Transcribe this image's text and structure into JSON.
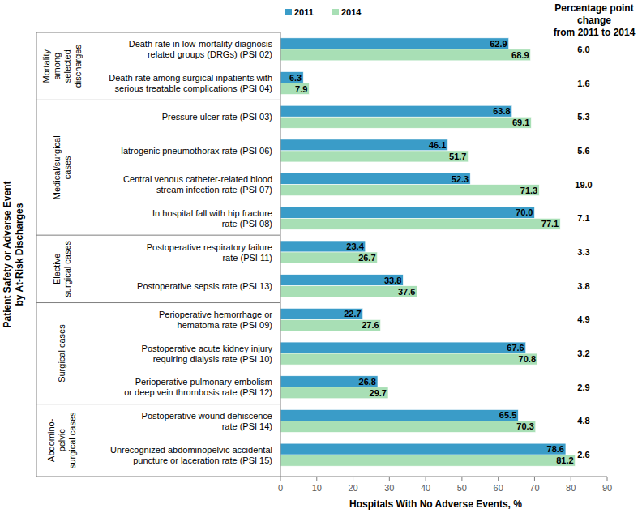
{
  "chart_data": {
    "type": "bar",
    "orientation": "horizontal",
    "data_labels": true,
    "grid": false,
    "legend": "top",
    "x_label": "Hospitals With No Adverse Events, %",
    "y_label": "Patient Safety or Adverse Event\nby At-Risk Discharges",
    "xlim": [
      0,
      90
    ],
    "xticks": [
      0,
      10,
      20,
      30,
      40,
      50,
      60,
      70,
      80,
      90
    ],
    "categories": [
      "Death rate in low-mortality diagnosis\nrelated groups (DRGs) (PSI 02)",
      "Death rate among surgical inpatients with\nserious treatable complications (PSI 04)",
      "Pressure ulcer rate (PSI 03)",
      "Iatrogenic pneumothorax rate (PSI 06)",
      "Central venous catheter-related blood\nstream infection rate (PSI 07)",
      "In hospital fall with hip fracture\nrate (PSI 08)",
      "Postoperative respiratory failure\nrate (PSI 11)",
      "Postoperative sepsis rate (PSI 13)",
      "Perioperative hemorrhage or\nhematoma rate (PSI 09)",
      "Postoperative acute kidney injury\nrequiring dialysis rate (PSI 10)",
      "Perioperative pulmonary embolism\nor deep vein thrombosis rate (PSI 12)",
      "Postoperative wound dehiscence\nrate (PSI 14)",
      "Unrecognized abdominopelvic accidental\npuncture or laceration rate (PSI 15)"
    ],
    "category_groups": [
      "Mortality\namong\nselected\ndischarges",
      "Mortality\namong\nselected\ndischarges",
      "Medical/surgical\ncases",
      "Medical/surgical\ncases",
      "Medical/surgical\ncases",
      "Medical/surgical\ncases",
      "Elective\nsurgical cases",
      "Elective\nsurgical cases",
      "Surgical cases",
      "Surgical cases",
      "Surgical cases",
      "Abdomino-\npelvic\nsurgical cases",
      "Abdomino-\npelvic\nsurgical cases"
    ],
    "series": [
      {
        "name": "2011",
        "color": "#3a9cc8",
        "values": [
          62.9,
          6.3,
          63.8,
          46.1,
          52.3,
          70.0,
          23.4,
          33.8,
          22.7,
          67.6,
          26.8,
          65.5,
          78.6
        ],
        "value_labels": [
          "62.9",
          "6.3",
          "63.8",
          "46.1",
          "52.3",
          "70.0",
          "23.4",
          "33.8",
          "22.7",
          "67.6",
          "26.8",
          "65.5",
          "78.6"
        ]
      },
      {
        "name": "2014",
        "color": "#a8dfb5",
        "values": [
          68.9,
          7.9,
          69.1,
          51.7,
          71.3,
          77.1,
          26.7,
          37.6,
          27.6,
          70.8,
          29.7,
          70.3,
          81.2
        ],
        "value_labels": [
          "68.9",
          "7.9",
          "69.1",
          "51.7",
          "71.3",
          "77.1",
          "26.7",
          "37.6",
          "27.6",
          "70.8",
          "29.7",
          "70.3",
          "81.2"
        ]
      }
    ],
    "changes_title": "Percentage point\nchange\nfrom 2011 to 2014",
    "changes": [
      "6.0",
      "1.6",
      "5.3",
      "5.6",
      "19.0",
      "7.1",
      "3.3",
      "3.8",
      "4.9",
      "3.2",
      "2.9",
      "4.8",
      "2.6"
    ]
  }
}
